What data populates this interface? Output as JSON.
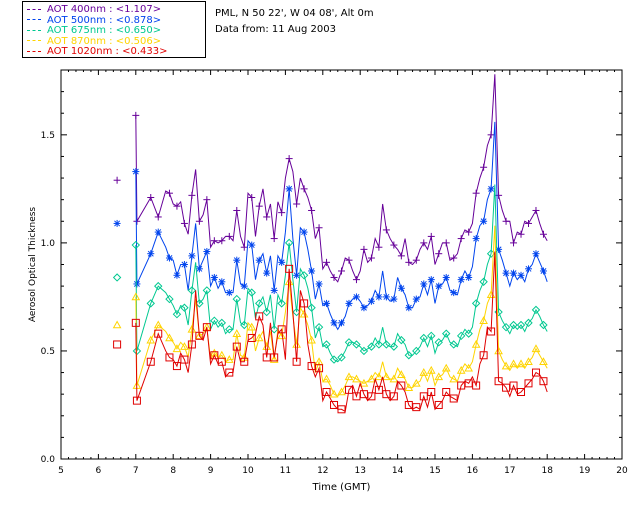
{
  "header": {
    "site": "PML, N 50 22', W 04 08', Alt 0m",
    "date": "Data from: 11 Aug 2003"
  },
  "chart_data": {
    "type": "line",
    "xlabel": "Time (GMT)",
    "ylabel": "Aerosol Optical Thickness",
    "xlim": [
      5,
      20
    ],
    "ylim": [
      0,
      1.8
    ],
    "xticks": [
      5,
      6,
      7,
      8,
      9,
      10,
      11,
      12,
      13,
      14,
      15,
      16,
      17,
      18,
      19,
      20
    ],
    "yticks": [
      0.0,
      0.5,
      1.0,
      1.5
    ],
    "ytick_labels": [
      "0.0",
      "0.5",
      "1.0",
      "1.5"
    ],
    "legend_position": "top-left",
    "x": [
      6.5,
      7.0,
      7.03,
      7.4,
      7.6,
      7.8,
      7.9,
      8.0,
      8.1,
      8.2,
      8.3,
      8.4,
      8.5,
      8.6,
      8.7,
      8.8,
      8.9,
      9.0,
      9.1,
      9.2,
      9.3,
      9.4,
      9.5,
      9.6,
      9.7,
      9.8,
      9.9,
      10.0,
      10.1,
      10.2,
      10.3,
      10.4,
      10.5,
      10.6,
      10.7,
      10.8,
      10.9,
      11.0,
      11.1,
      11.2,
      11.3,
      11.4,
      11.5,
      11.6,
      11.7,
      11.8,
      11.9,
      12.0,
      12.1,
      12.2,
      12.3,
      12.4,
      12.5,
      12.6,
      12.7,
      12.8,
      12.9,
      13.0,
      13.1,
      13.2,
      13.3,
      13.4,
      13.5,
      13.6,
      13.7,
      13.8,
      13.9,
      14.0,
      14.1,
      14.2,
      14.3,
      14.4,
      14.5,
      14.6,
      14.7,
      14.8,
      14.9,
      15.0,
      15.1,
      15.2,
      15.3,
      15.4,
      15.5,
      15.6,
      15.7,
      15.8,
      15.9,
      16.0,
      16.1,
      16.2,
      16.3,
      16.4,
      16.5,
      16.6,
      16.7,
      16.8,
      16.9,
      17.0,
      17.1,
      17.2,
      17.3,
      17.4,
      17.5,
      17.6,
      17.7,
      17.8,
      17.9,
      18.0
    ],
    "series": [
      {
        "name": "AOT  400nm",
        "mean": "<1.107>",
        "color": "#660099",
        "marker": "plus",
        "values": [
          1.29,
          1.59,
          1.1,
          1.21,
          1.12,
          1.24,
          1.23,
          1.18,
          1.17,
          1.19,
          1.09,
          1.04,
          1.22,
          1.34,
          1.1,
          1.13,
          1.2,
          0.98,
          1.01,
          1.0,
          1.01,
          1.03,
          1.03,
          1.01,
          1.15,
          1.03,
          0.98,
          1.23,
          1.21,
          1.03,
          1.17,
          1.25,
          1.12,
          1.18,
          1.02,
          1.19,
          1.14,
          1.3,
          1.39,
          1.33,
          1.18,
          1.3,
          1.25,
          1.21,
          1.15,
          1.02,
          1.07,
          0.88,
          0.91,
          0.87,
          0.84,
          0.82,
          0.87,
          0.93,
          0.92,
          0.87,
          0.83,
          0.87,
          0.97,
          0.91,
          0.93,
          1.02,
          0.98,
          1.18,
          1.06,
          1.02,
          0.99,
          0.97,
          0.94,
          1.02,
          0.91,
          0.9,
          0.92,
          0.97,
          1.0,
          0.97,
          1.03,
          0.9,
          0.95,
          1.0,
          1.0,
          0.92,
          0.93,
          0.95,
          1.02,
          1.06,
          1.05,
          1.09,
          1.23,
          1.3,
          1.35,
          1.45,
          1.5,
          1.78,
          1.22,
          1.15,
          1.1,
          1.1,
          1.0,
          1.05,
          1.04,
          1.1,
          1.09,
          1.12,
          1.15,
          1.09,
          1.04,
          1.01
        ]
      },
      {
        "name": "AOT  500nm",
        "mean": "<0.878>",
        "color": "#0044ee",
        "marker": "asterisk",
        "values": [
          1.09,
          1.33,
          0.81,
          0.95,
          1.05,
          0.98,
          0.93,
          0.92,
          0.85,
          0.9,
          0.9,
          0.78,
          0.94,
          1.09,
          0.88,
          0.92,
          0.96,
          0.8,
          0.84,
          0.79,
          0.82,
          0.77,
          0.77,
          0.77,
          0.92,
          0.81,
          0.8,
          1.01,
          0.99,
          0.83,
          0.92,
          0.95,
          0.86,
          0.94,
          0.78,
          0.94,
          0.91,
          1.05,
          1.25,
          1.02,
          0.85,
          1.07,
          1.05,
          0.97,
          0.87,
          0.74,
          0.81,
          0.71,
          0.72,
          0.67,
          0.63,
          0.6,
          0.63,
          0.66,
          0.72,
          0.74,
          0.75,
          0.73,
          0.7,
          0.71,
          0.73,
          0.78,
          0.75,
          0.87,
          0.75,
          0.73,
          0.74,
          0.84,
          0.79,
          0.76,
          0.7,
          0.7,
          0.74,
          0.75,
          0.81,
          0.76,
          0.83,
          0.72,
          0.8,
          0.81,
          0.84,
          0.78,
          0.77,
          0.76,
          0.83,
          0.87,
          0.84,
          0.89,
          1.02,
          1.08,
          1.1,
          1.2,
          1.25,
          1.56,
          0.97,
          0.92,
          0.86,
          0.8,
          0.86,
          0.83,
          0.85,
          0.82,
          0.88,
          0.9,
          0.95,
          0.91,
          0.87,
          0.82
        ]
      },
      {
        "name": "AOT  675nm",
        "mean": "<0.650>",
        "color": "#00c890",
        "marker": "diamond",
        "values": [
          0.84,
          0.99,
          0.5,
          0.72,
          0.8,
          0.77,
          0.74,
          0.71,
          0.67,
          0.71,
          0.7,
          0.62,
          0.78,
          0.91,
          0.72,
          0.74,
          0.78,
          0.6,
          0.64,
          0.61,
          0.63,
          0.58,
          0.6,
          0.6,
          0.74,
          0.63,
          0.62,
          0.79,
          0.77,
          0.65,
          0.72,
          0.75,
          0.68,
          0.76,
          0.6,
          0.76,
          0.72,
          0.85,
          1.0,
          0.83,
          0.68,
          0.88,
          0.85,
          0.79,
          0.7,
          0.56,
          0.61,
          0.52,
          0.53,
          0.49,
          0.46,
          0.45,
          0.47,
          0.5,
          0.54,
          0.54,
          0.53,
          0.52,
          0.5,
          0.51,
          0.52,
          0.56,
          0.53,
          0.61,
          0.53,
          0.52,
          0.52,
          0.58,
          0.55,
          0.53,
          0.48,
          0.48,
          0.5,
          0.52,
          0.56,
          0.52,
          0.57,
          0.49,
          0.54,
          0.55,
          0.58,
          0.54,
          0.53,
          0.52,
          0.57,
          0.6,
          0.58,
          0.61,
          0.72,
          0.78,
          0.82,
          0.9,
          0.95,
          1.27,
          0.68,
          0.64,
          0.61,
          0.58,
          0.62,
          0.6,
          0.62,
          0.59,
          0.63,
          0.65,
          0.69,
          0.66,
          0.62,
          0.59
        ]
      },
      {
        "name": "AOT  870nm",
        "mean": "<0.506>",
        "color": "#ffd400",
        "marker": "triangle",
        "values": [
          0.62,
          0.75,
          0.34,
          0.55,
          0.62,
          0.59,
          0.56,
          0.54,
          0.51,
          0.54,
          0.52,
          0.47,
          0.6,
          0.74,
          0.57,
          0.58,
          0.61,
          0.46,
          0.49,
          0.47,
          0.48,
          0.45,
          0.46,
          0.46,
          0.58,
          0.48,
          0.47,
          0.63,
          0.61,
          0.5,
          0.56,
          0.59,
          0.52,
          0.59,
          0.46,
          0.6,
          0.57,
          0.68,
          0.82,
          0.66,
          0.53,
          0.7,
          0.67,
          0.62,
          0.55,
          0.4,
          0.45,
          0.36,
          0.37,
          0.34,
          0.3,
          0.29,
          0.31,
          0.34,
          0.38,
          0.38,
          0.37,
          0.36,
          0.35,
          0.36,
          0.37,
          0.4,
          0.38,
          0.45,
          0.38,
          0.37,
          0.37,
          0.42,
          0.39,
          0.37,
          0.33,
          0.33,
          0.35,
          0.36,
          0.4,
          0.36,
          0.41,
          0.34,
          0.38,
          0.39,
          0.42,
          0.38,
          0.37,
          0.36,
          0.41,
          0.44,
          0.42,
          0.45,
          0.53,
          0.6,
          0.64,
          0.72,
          0.76,
          1.08,
          0.5,
          0.46,
          0.43,
          0.41,
          0.44,
          0.42,
          0.44,
          0.42,
          0.45,
          0.47,
          0.51,
          0.48,
          0.45,
          0.42
        ]
      },
      {
        "name": "AOT 1020nm",
        "mean": "<0.433>",
        "color": "#e00000",
        "marker": "square",
        "values": [
          0.53,
          0.63,
          0.27,
          0.45,
          0.58,
          0.5,
          0.47,
          0.46,
          0.43,
          0.49,
          0.46,
          0.4,
          0.53,
          0.78,
          0.57,
          0.55,
          0.61,
          0.44,
          0.48,
          0.44,
          0.45,
          0.38,
          0.4,
          0.4,
          0.52,
          0.45,
          0.45,
          0.55,
          0.56,
          0.58,
          0.66,
          0.62,
          0.47,
          0.63,
          0.47,
          0.58,
          0.6,
          0.46,
          0.88,
          0.68,
          0.45,
          0.78,
          0.72,
          0.53,
          0.43,
          0.38,
          0.42,
          0.27,
          0.31,
          0.28,
          0.25,
          0.23,
          0.23,
          0.22,
          0.32,
          0.34,
          0.29,
          0.35,
          0.3,
          0.27,
          0.29,
          0.37,
          0.32,
          0.38,
          0.3,
          0.27,
          0.29,
          0.36,
          0.34,
          0.31,
          0.25,
          0.23,
          0.24,
          0.23,
          0.29,
          0.24,
          0.31,
          0.23,
          0.25,
          0.27,
          0.31,
          0.29,
          0.28,
          0.27,
          0.34,
          0.36,
          0.35,
          0.38,
          0.34,
          0.44,
          0.48,
          0.61,
          0.59,
          0.96,
          0.36,
          0.35,
          0.33,
          0.29,
          0.34,
          0.3,
          0.31,
          0.33,
          0.35,
          0.37,
          0.4,
          0.39,
          0.36,
          0.31
        ]
      }
    ]
  }
}
